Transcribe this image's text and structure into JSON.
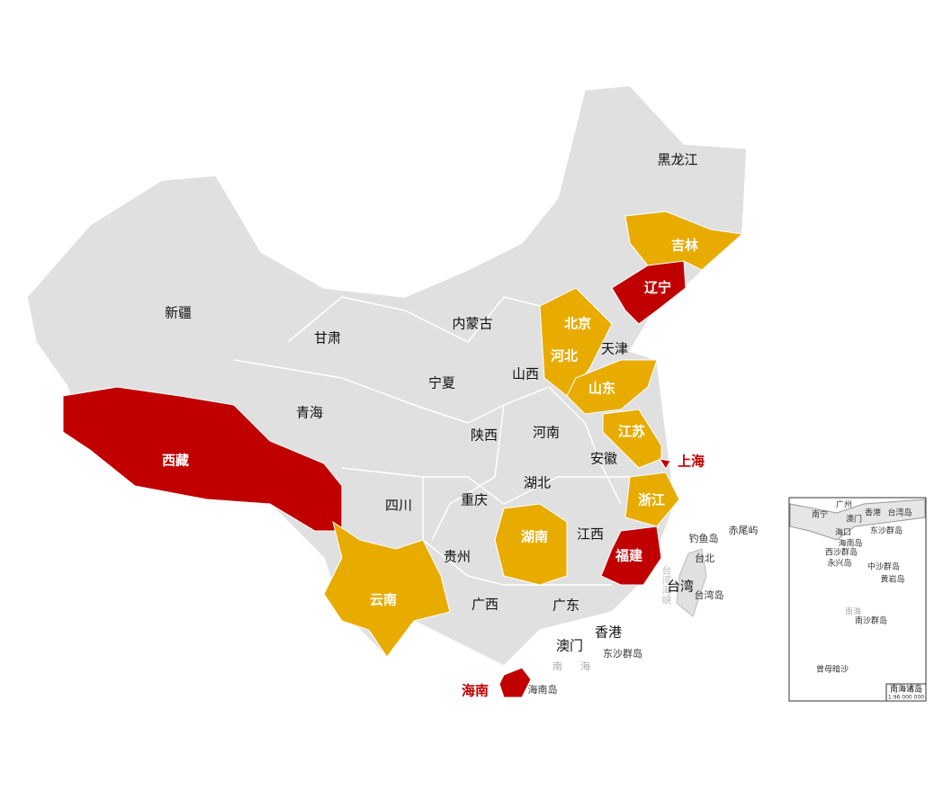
{
  "provinces": [
    {
      "name": "黑龙江",
      "color": "#e0e0e0"
    },
    {
      "name": "吉林",
      "color": "#e8ab00"
    },
    {
      "name": "辽宁",
      "color": "#c00000"
    },
    {
      "name": "内蒙古",
      "color": "#e0e0e0"
    },
    {
      "name": "北京",
      "color": "#c00000"
    },
    {
      "name": "天津",
      "color": "#e0e0e0"
    },
    {
      "name": "河北",
      "color": "#e8ab00"
    },
    {
      "name": "山西",
      "color": "#e0e0e0"
    },
    {
      "name": "山东",
      "color": "#e8ab00"
    },
    {
      "name": "新疆",
      "color": "#e0e0e0"
    },
    {
      "name": "甘肃",
      "color": "#e0e0e0"
    },
    {
      "name": "宁夏",
      "color": "#e0e0e0"
    },
    {
      "name": "青海",
      "color": "#e0e0e0"
    },
    {
      "name": "西藏",
      "color": "#c00000"
    },
    {
      "name": "陕西",
      "color": "#e0e0e0"
    },
    {
      "name": "河南",
      "color": "#e0e0e0"
    },
    {
      "name": "江苏",
      "color": "#e8ab00"
    },
    {
      "name": "上海",
      "color": "#c00000"
    },
    {
      "name": "安徽",
      "color": "#e0e0e0"
    },
    {
      "name": "湖北",
      "color": "#e0e0e0"
    },
    {
      "name": "浙江",
      "color": "#e8ab00"
    },
    {
      "name": "四川",
      "color": "#e0e0e0"
    },
    {
      "name": "重庆",
      "color": "#e0e0e0"
    },
    {
      "name": "湖南",
      "color": "#e8ab00"
    },
    {
      "name": "江西",
      "color": "#e0e0e0"
    },
    {
      "name": "福建",
      "color": "#c00000"
    },
    {
      "name": "贵州",
      "color": "#e0e0e0"
    },
    {
      "name": "云南",
      "color": "#e8ab00"
    },
    {
      "name": "广西",
      "color": "#e0e0e0"
    },
    {
      "name": "广东",
      "color": "#e0e0e0"
    },
    {
      "name": "香港",
      "color": "#e0e0e0"
    },
    {
      "name": "澳门",
      "color": "#e0e0e0"
    },
    {
      "name": "台湾",
      "color": "#e0e0e0"
    },
    {
      "name": "海南",
      "color": "#c00000"
    }
  ],
  "place_labels": [
    "钓鱼岛",
    "赤尾屿",
    "台北",
    "台湾岛",
    "东沙群岛",
    "南海",
    "海南岛",
    "台湾海峡"
  ],
  "inset": {
    "title": "南海诸岛",
    "scale": "1:96 000 000",
    "labels": [
      "南宁",
      "广州",
      "香港",
      "澳门",
      "台湾岛",
      "海口",
      "东沙群岛",
      "海南岛",
      "西沙群岛",
      "永兴岛",
      "中沙群岛",
      "黄岩岛",
      "南海",
      "南沙群岛",
      "曾母暗沙"
    ]
  }
}
